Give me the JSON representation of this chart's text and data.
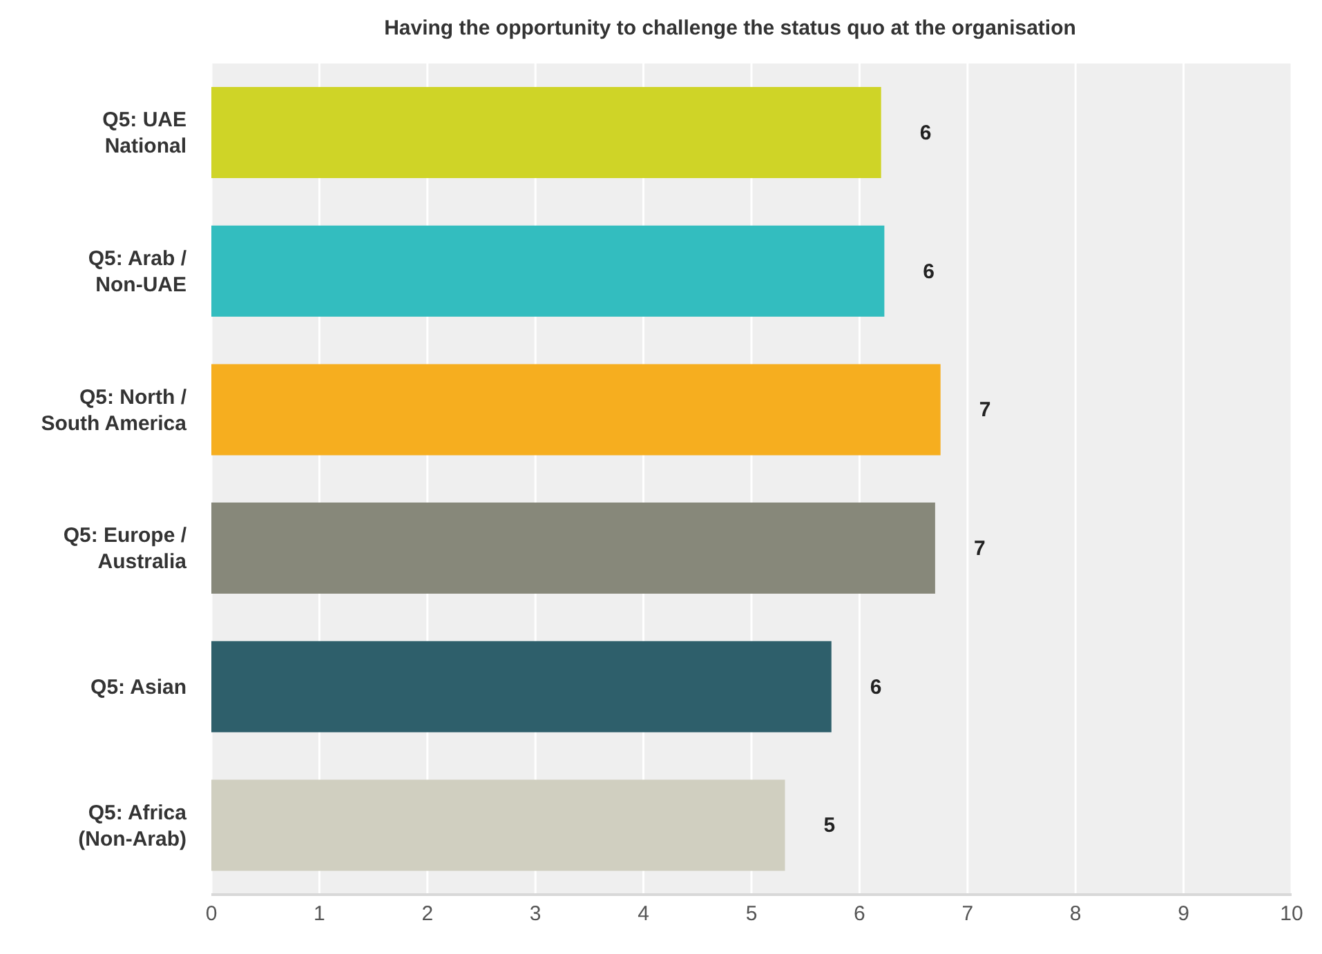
{
  "chart_data": {
    "type": "bar",
    "orientation": "horizontal",
    "title": "Having the opportunity to challenge the status quo at the organisation",
    "categories": [
      "Q5: UAE National",
      "Q5: Arab / Non-UAE",
      "Q5: North / South America",
      "Q5: Europe / Australia",
      "Q5: Asian",
      "Q5: Africa (Non-Arab)"
    ],
    "values": [
      6.2,
      6.23,
      6.75,
      6.7,
      5.74,
      5.31
    ],
    "colors": [
      "#cfd427",
      "#33bdbf",
      "#f6ae1f",
      "#87887a",
      "#2e5f6b",
      "#d0cfc0"
    ],
    "value_labels": [
      "6",
      "6",
      "7",
      "7",
      "6",
      "5"
    ],
    "xlim": [
      0,
      10
    ],
    "xticks": [
      0,
      1,
      2,
      3,
      4,
      5,
      6,
      7,
      8,
      9,
      10
    ],
    "grid": "x",
    "legend": false
  }
}
